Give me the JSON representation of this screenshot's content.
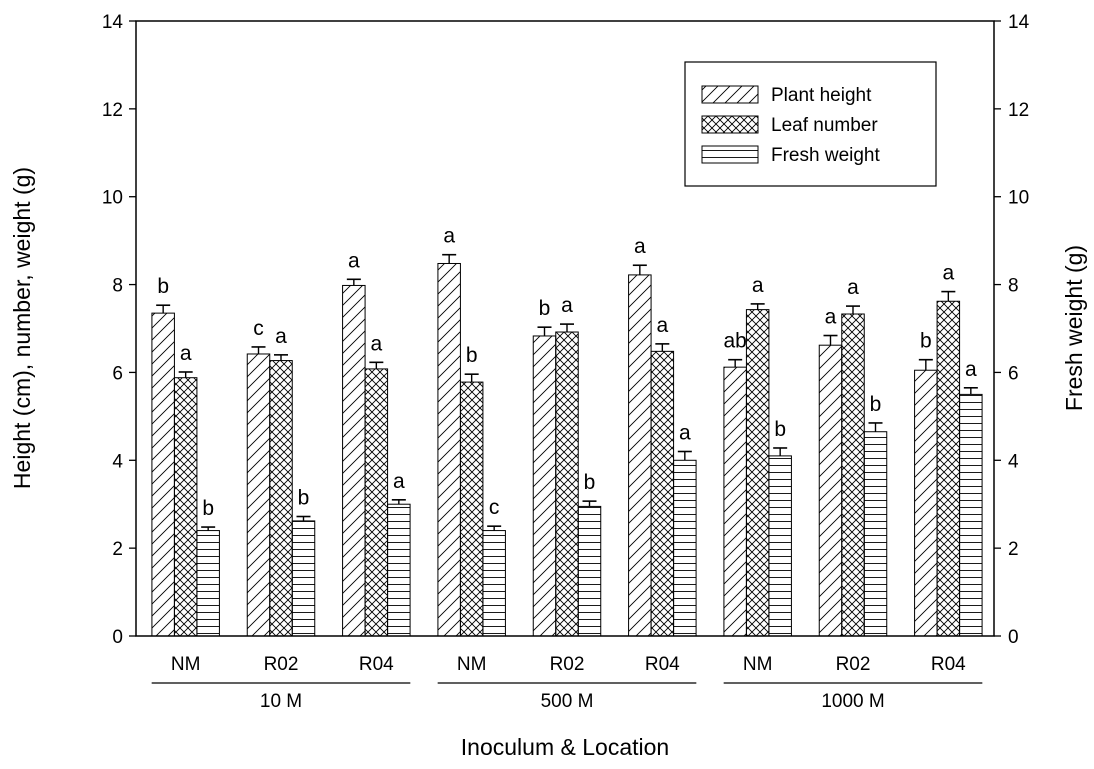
{
  "chart_data": {
    "type": "bar",
    "title": "",
    "xlabel": "Inoculum & Location",
    "ylabel": "Height (cm), number, weight (g)",
    "y2label": "Fresh weight (g)",
    "ylim": [
      0,
      14
    ],
    "y2lim": [
      0,
      14
    ],
    "yticks": [
      "0",
      "2",
      "4",
      "6",
      "8",
      "10",
      "12",
      "14"
    ],
    "grid": false,
    "legend_position": "top-right",
    "categories": [
      "NM",
      "R02",
      "R04",
      "NM",
      "R02",
      "R04",
      "NM",
      "R02",
      "R04"
    ],
    "groups": [
      {
        "label": "10 M",
        "start": 0,
        "end": 2
      },
      {
        "label": "500 M",
        "start": 3,
        "end": 5
      },
      {
        "label": "1000 M",
        "start": 6,
        "end": 8
      }
    ],
    "series": [
      {
        "name": "Plant height",
        "pattern": "diagonal",
        "values": [
          7.35,
          6.42,
          7.98,
          8.48,
          6.83,
          8.22,
          6.12,
          6.62,
          6.05
        ],
        "errors": [
          0.18,
          0.16,
          0.14,
          0.2,
          0.2,
          0.22,
          0.17,
          0.22,
          0.24
        ],
        "sig": [
          "b",
          "c",
          "a",
          "a",
          "b",
          "a",
          "ab",
          "a",
          "b"
        ]
      },
      {
        "name": "Leaf number",
        "pattern": "crosshatch",
        "values": [
          5.88,
          6.27,
          6.08,
          5.78,
          6.92,
          6.48,
          7.43,
          7.33,
          7.62
        ],
        "errors": [
          0.13,
          0.13,
          0.15,
          0.18,
          0.18,
          0.17,
          0.13,
          0.18,
          0.22
        ],
        "sig": [
          "a",
          "a",
          "a",
          "b",
          "a",
          "a",
          "a",
          "a",
          "a"
        ]
      },
      {
        "name": "Fresh weight",
        "pattern": "horizontal",
        "values": [
          2.4,
          2.62,
          3.0,
          2.4,
          2.95,
          4.0,
          4.1,
          4.65,
          5.5
        ],
        "errors": [
          0.08,
          0.1,
          0.1,
          0.1,
          0.12,
          0.2,
          0.18,
          0.2,
          0.15
        ],
        "sig": [
          "b",
          "b",
          "a",
          "c",
          "b",
          "a",
          "b",
          "b",
          "a"
        ]
      }
    ]
  }
}
